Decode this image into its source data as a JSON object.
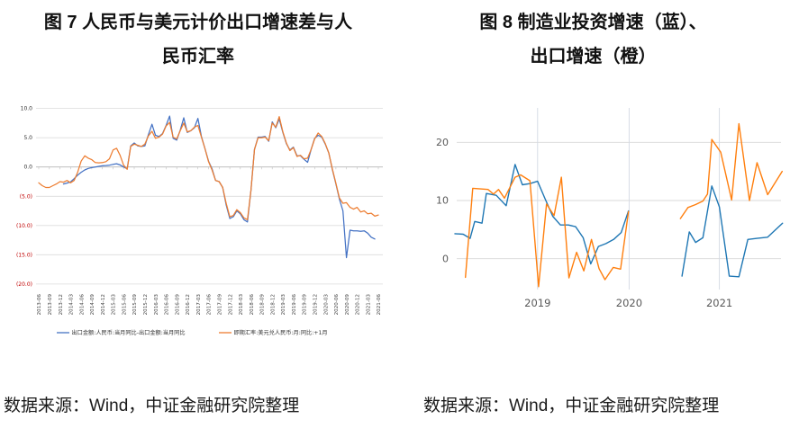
{
  "figures": [
    {
      "title_line1": "图 7 人民币与美元计价出口增速差与人",
      "title_line2": "民币汇率",
      "source": "数据来源：Wind，中证金融研究院整理"
    },
    {
      "title_line1": "图 8 制造业投资增速（蓝）、",
      "title_line2": "出口增速（橙）",
      "source": "数据来源：Wind，中证金融研究院整理"
    }
  ],
  "chart_data": [
    {
      "type": "line",
      "title": "图 7 人民币与美元计价出口增速差与人民币汇率",
      "x_monthly_range": [
        "2013-06",
        "2021-06"
      ],
      "x_tick_labels": [
        "2013-06",
        "2013-09",
        "2013-12",
        "2014-03",
        "2014-06",
        "2014-09",
        "2014-12",
        "2015-03",
        "2015-06",
        "2015-09",
        "2015-12",
        "2016-03",
        "2016-06",
        "2016-09",
        "2016-12",
        "2017-03",
        "2017-06",
        "2017-09",
        "2017-12",
        "2018-03",
        "2018-06",
        "2018-09",
        "2018-12",
        "2019-03",
        "2019-06",
        "2019-09",
        "2019-12",
        "2020-03",
        "2020-06",
        "2020-09",
        "2020-12",
        "2021-03",
        "2021-06"
      ],
      "y_ticks": [
        {
          "label": "10.0",
          "value": 10
        },
        {
          "label": "5.0",
          "value": 5
        },
        {
          "label": "0.0",
          "value": 0
        },
        {
          "label": "(5.0)",
          "value": -5
        },
        {
          "label": "(10.0)",
          "value": -10
        },
        {
          "label": "(15.0)",
          "value": -15
        },
        {
          "label": "(20.0)",
          "value": -20
        }
      ],
      "ylim": [
        -21,
        11
      ],
      "grid": "horizontal",
      "legend_position": "bottom",
      "negative_label_color": "#C00000",
      "series": [
        {
          "name": "出口金额:人民币:当月同比-出口金额:当月同比",
          "color": "#4472C4",
          "values": [
            null,
            null,
            null,
            null,
            null,
            null,
            null,
            -2.9,
            -2.75,
            -2.55,
            -2.0,
            -1.4,
            -0.9,
            -0.5,
            -0.25,
            -0.1,
            0,
            0.1,
            0.2,
            0.25,
            0.3,
            0.45,
            0.55,
            0.35,
            0,
            -0.3,
            3.6,
            4.1,
            3.6,
            3.5,
            3.6,
            5.5,
            7.3,
            5.4,
            5.2,
            5.7,
            7.1,
            8.7,
            4.9,
            4.6,
            6.3,
            8.4,
            5.9,
            6.2,
            6.7,
            8.3,
            5.2,
            3.1,
            1.0,
            -0.3,
            -2.3,
            -2.5,
            -3.5,
            -6.5,
            -8.8,
            -8.5,
            -7.5,
            -8.0,
            -9.0,
            -9.4,
            -4.0,
            3.0,
            5.1,
            5.1,
            5.2,
            4.4,
            7.7,
            6.7,
            8.2,
            5.9,
            4.0,
            2.9,
            3.4,
            1.9,
            1.9,
            1.3,
            0.8,
            3.0,
            4.9,
            5.4,
            5.1,
            3.9,
            2.4,
            -0.4,
            -2.9,
            -5.5,
            -7.5,
            -15.5,
            -10.8,
            -10.9,
            -10.9,
            -11.0,
            -10.9,
            -11.3,
            -12.0,
            -12.3,
            null
          ]
        },
        {
          "name": "即期汇率:美元兑人民币:月:同比:+1月",
          "color": "#ED7D31",
          "values": [
            -2.7,
            -3.2,
            -3.5,
            -3.5,
            -3.2,
            -2.9,
            -2.5,
            -2.6,
            -2.3,
            -2.7,
            -2.3,
            -0.9,
            1.0,
            1.9,
            1.5,
            1.25,
            0.75,
            0.7,
            0.75,
            0.9,
            1.4,
            2.9,
            3.2,
            2.0,
            0.3,
            -0.4,
            3.5,
            3.9,
            3.7,
            3.5,
            3.9,
            5.3,
            6.1,
            4.9,
            5.1,
            5.6,
            7.0,
            7.6,
            5.1,
            4.8,
            6.2,
            7.5,
            6.0,
            6.2,
            6.8,
            7.1,
            5.1,
            3.1,
            0.9,
            -0.5,
            -2.3,
            -2.5,
            -3.5,
            -6.2,
            -8.5,
            -8.3,
            -7.3,
            -7.8,
            -8.7,
            -9.0,
            -4.0,
            3.0,
            5.0,
            5.0,
            5.1,
            4.5,
            7.5,
            6.8,
            8.6,
            6.0,
            4.1,
            2.8,
            3.3,
            1.8,
            2.0,
            1.4,
            1.5,
            3.0,
            4.8,
            5.8,
            5.2,
            4.0,
            2.4,
            -0.3,
            -2.8,
            -5.3,
            -6.2,
            -6.1,
            -6.9,
            -7.2,
            -6.9,
            -7.7,
            -7.5,
            -8.0,
            -7.9,
            -8.4,
            -8.2
          ]
        }
      ]
    },
    {
      "type": "line",
      "title": "图 8 制造业投资增速（蓝）、出口增速（橙）",
      "x_range_note": "2018-02 至 2021-06",
      "x_ticks": [
        {
          "label": "2019",
          "pos": 0.25
        },
        {
          "label": "2020",
          "pos": 0.527
        },
        {
          "label": "2021",
          "pos": 0.8
        }
      ],
      "y_ticks": [
        {
          "label": "20",
          "value": 20
        },
        {
          "label": "10",
          "value": 10
        },
        {
          "label": "0",
          "value": 0
        }
      ],
      "ylim": [
        -5.5,
        26
      ],
      "grid": "both",
      "series": [
        {
          "name": "制造业投资增速",
          "color": "#1F77B4",
          "segments": [
            [
              [
                0.0,
                4.3
              ],
              [
                0.025,
                4.2
              ],
              [
                0.046,
                3.5
              ],
              [
                0.06,
                6.4
              ],
              [
                0.082,
                6.1
              ],
              [
                0.095,
                11.2
              ],
              [
                0.125,
                10.9
              ],
              [
                0.155,
                9.1
              ],
              [
                0.182,
                16.2
              ],
              [
                0.204,
                12.7
              ],
              [
                0.227,
                12.9
              ],
              [
                0.25,
                13.3
              ],
              [
                0.272,
                10.4
              ],
              [
                0.296,
                7.3
              ],
              [
                0.319,
                5.8
              ],
              [
                0.343,
                5.8
              ],
              [
                0.365,
                5.5
              ],
              [
                0.388,
                3.6
              ],
              [
                0.411,
                -0.9
              ],
              [
                0.434,
                2.1
              ],
              [
                0.457,
                2.6
              ],
              [
                0.48,
                3.3
              ],
              [
                0.503,
                4.5
              ],
              [
                0.525,
                8.2
              ]
            ],
            [
              [
                0.687,
                -3.0
              ],
              [
                0.709,
                4.6
              ],
              [
                0.728,
                2.8
              ],
              [
                0.75,
                3.6
              ],
              [
                0.777,
                12.5
              ],
              [
                0.8,
                8.9
              ],
              [
                0.83,
                -3.0
              ],
              [
                0.859,
                -3.1
              ],
              [
                0.886,
                3.3
              ],
              [
                0.914,
                3.5
              ],
              [
                0.946,
                3.7
              ],
              [
                0.991,
                6.1
              ]
            ]
          ]
        },
        {
          "name": "出口增速",
          "color": "#FF7F0E",
          "segments": [
            [
              [
                0.032,
                -3.2
              ],
              [
                0.054,
                12.1
              ],
              [
                0.077,
                12.0
              ],
              [
                0.1,
                11.9
              ],
              [
                0.117,
                11.1
              ],
              [
                0.132,
                11.9
              ],
              [
                0.15,
                10.4
              ],
              [
                0.182,
                14.0
              ],
              [
                0.199,
                14.4
              ],
              [
                0.227,
                13.4
              ],
              [
                0.253,
                -4.8
              ],
              [
                0.277,
                9.4
              ],
              [
                0.3,
                7.4
              ],
              [
                0.322,
                14.0
              ],
              [
                0.345,
                -3.3
              ],
              [
                0.368,
                1.1
              ],
              [
                0.39,
                -2.1
              ],
              [
                0.413,
                3.3
              ],
              [
                0.436,
                -1.7
              ],
              [
                0.454,
                -3.6
              ],
              [
                0.479,
                -1.5
              ],
              [
                0.501,
                -1.8
              ],
              [
                0.525,
                8.1
              ]
            ],
            [
              [
                0.682,
                6.9
              ],
              [
                0.705,
                8.8
              ],
              [
                0.728,
                9.3
              ],
              [
                0.75,
                9.9
              ],
              [
                0.764,
                11.1
              ],
              [
                0.777,
                20.5
              ],
              [
                0.804,
                18.3
              ],
              [
                0.837,
                10.1
              ],
              [
                0.859,
                23.2
              ],
              [
                0.891,
                10.0
              ],
              [
                0.914,
                16.5
              ],
              [
                0.946,
                11.0
              ],
              [
                0.99,
                15.0
              ]
            ]
          ]
        }
      ]
    }
  ]
}
